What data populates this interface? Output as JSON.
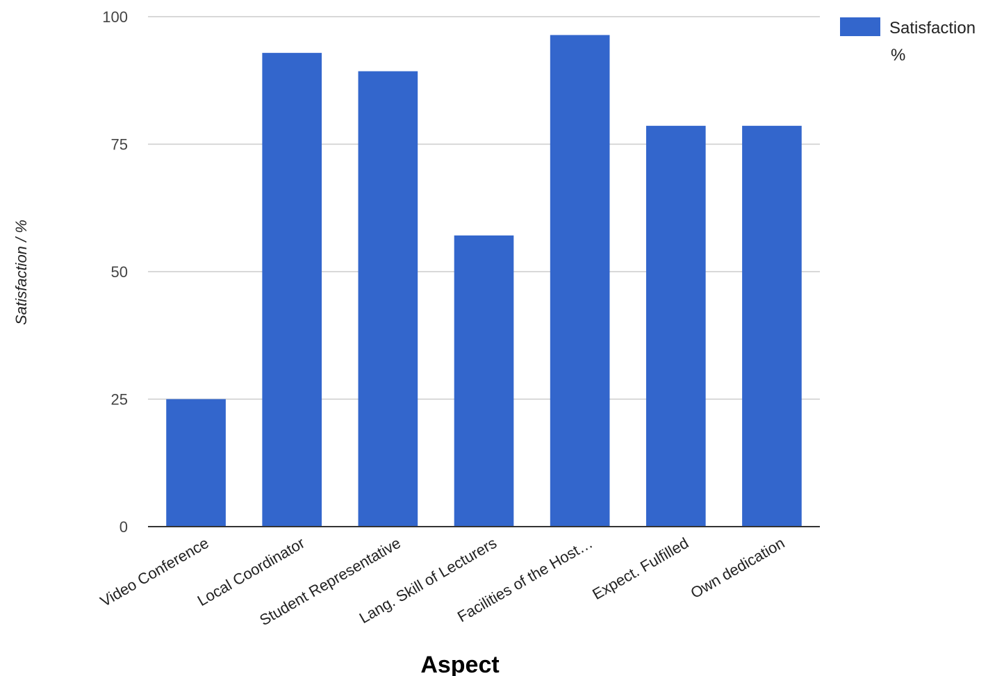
{
  "chart_data": {
    "type": "bar",
    "title": "",
    "xlabel": "Aspect",
    "ylabel": "Satisfaction / %",
    "ylim": [
      0,
      100
    ],
    "yticks": [
      "0",
      "25",
      "50",
      "75",
      "100"
    ],
    "grid": true,
    "legend_position": "top-right",
    "categories": [
      "Video Conference",
      "Local Coordinator",
      "Student Representative",
      "Lang. Skill of Lecturers",
      "Facilities of the Host…",
      "Expect. Fulfilled",
      "Own dedication"
    ],
    "series": [
      {
        "name": "Satisfaction %",
        "legend_lines": [
          "Satisfaction",
          "%"
        ],
        "values": [
          25,
          92.9,
          89.3,
          57.1,
          96.4,
          78.6,
          78.6
        ],
        "color": "#3366cc"
      }
    ]
  }
}
